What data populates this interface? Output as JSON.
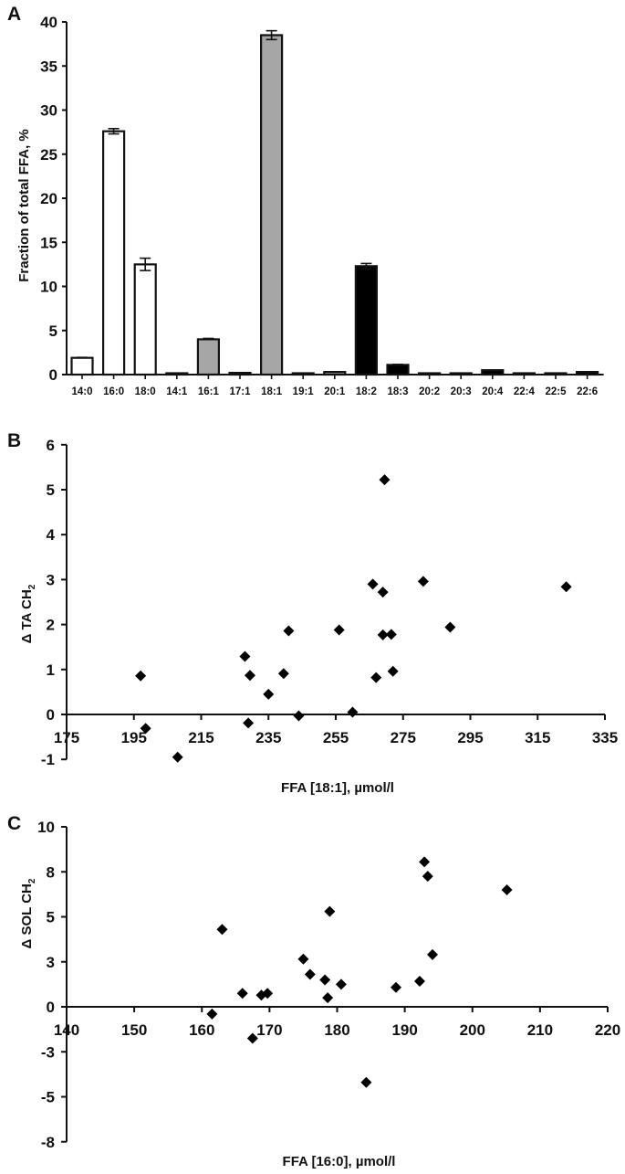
{
  "chart_data": [
    {
      "panel": "A",
      "type": "bar",
      "title": "",
      "xlabel": "",
      "ylabel": "Fraction of total FFA, %",
      "ylim": [
        0,
        40
      ],
      "yticks": [
        0,
        5,
        10,
        15,
        20,
        25,
        30,
        35,
        40
      ],
      "grid": false,
      "categories": [
        "14:0",
        "16:0",
        "18:0",
        "14:1",
        "16:1",
        "17:1",
        "18:1",
        "19:1",
        "20:1",
        "18:2",
        "18:3",
        "20:2",
        "20:3",
        "20:4",
        "22:4",
        "22:5",
        "22:6"
      ],
      "values": [
        1.9,
        27.6,
        12.5,
        0.15,
        4.0,
        0.2,
        38.5,
        0.05,
        0.3,
        12.3,
        1.1,
        0.1,
        0.15,
        0.5,
        0.05,
        0.1,
        0.3
      ],
      "errors": [
        0.05,
        0.3,
        0.7,
        0.02,
        0.1,
        0.02,
        0.5,
        0.01,
        0.03,
        0.3,
        0.05,
        0.01,
        0.02,
        0.03,
        0.01,
        0.01,
        0.03
      ],
      "groups": [
        "saturated",
        "saturated",
        "saturated",
        "monounsaturated",
        "monounsaturated",
        "monounsaturated",
        "monounsaturated",
        "monounsaturated",
        "monounsaturated",
        "polyunsaturated",
        "polyunsaturated",
        "polyunsaturated",
        "polyunsaturated",
        "polyunsaturated",
        "polyunsaturated",
        "polyunsaturated",
        "polyunsaturated"
      ],
      "group_colors": {
        "saturated": "#ffffff",
        "monounsaturated": "#a6a6a6",
        "polyunsaturated": "#000000"
      }
    },
    {
      "panel": "B",
      "type": "scatter",
      "title": "",
      "xlabel": "FFA [18:1], µmol/l",
      "ylabel": "Δ TA CH2",
      "xlim": [
        175,
        335
      ],
      "ylim": [
        -1,
        6
      ],
      "xticks": [
        175,
        195,
        215,
        235,
        255,
        275,
        295,
        315,
        335
      ],
      "yticks": [
        -1,
        0,
        1,
        2,
        3,
        4,
        5,
        6
      ],
      "grid": false,
      "points": [
        {
          "x": 197,
          "y": 0.86
        },
        {
          "x": 198.5,
          "y": -0.31
        },
        {
          "x": 208,
          "y": -0.95
        },
        {
          "x": 228,
          "y": 1.29
        },
        {
          "x": 229,
          "y": -0.19
        },
        {
          "x": 229.5,
          "y": 0.87
        },
        {
          "x": 235,
          "y": 0.45
        },
        {
          "x": 239.5,
          "y": 0.91
        },
        {
          "x": 241,
          "y": 1.86
        },
        {
          "x": 244,
          "y": -0.03
        },
        {
          "x": 256,
          "y": 1.88
        },
        {
          "x": 260,
          "y": 0.05
        },
        {
          "x": 266,
          "y": 2.9
        },
        {
          "x": 267,
          "y": 0.82
        },
        {
          "x": 269,
          "y": 2.72
        },
        {
          "x": 269.5,
          "y": 5.22
        },
        {
          "x": 269,
          "y": 1.77
        },
        {
          "x": 271.5,
          "y": 1.78
        },
        {
          "x": 272,
          "y": 0.96
        },
        {
          "x": 281,
          "y": 2.96
        },
        {
          "x": 289,
          "y": 1.94
        },
        {
          "x": 323.5,
          "y": 2.84
        }
      ]
    },
    {
      "panel": "C",
      "type": "scatter",
      "title": "",
      "xlabel": "FFA [16:0], µmol/l",
      "ylabel": "Δ SOL CH2",
      "xlim": [
        140,
        220
      ],
      "ylim": [
        -7.5,
        10
      ],
      "xticks": [
        140,
        150,
        160,
        170,
        180,
        190,
        200,
        210,
        220
      ],
      "ytick_labels": [
        "10",
        "8",
        "5",
        "3",
        "0",
        "-3",
        "-5",
        "-8"
      ],
      "ytick_values": [
        10,
        7.5,
        5,
        2.5,
        0,
        -2.5,
        -5,
        -7.5
      ],
      "grid": false,
      "points": [
        {
          "x": 161.5,
          "y": -0.4
        },
        {
          "x": 163,
          "y": 4.3
        },
        {
          "x": 166,
          "y": 0.75
        },
        {
          "x": 167.5,
          "y": -1.75
        },
        {
          "x": 168.8,
          "y": 0.65
        },
        {
          "x": 169.7,
          "y": 0.75
        },
        {
          "x": 175,
          "y": 2.65
        },
        {
          "x": 176,
          "y": 1.8
        },
        {
          "x": 178.2,
          "y": 1.5
        },
        {
          "x": 178.6,
          "y": 0.5
        },
        {
          "x": 178.9,
          "y": 5.3
        },
        {
          "x": 180.6,
          "y": 1.25
        },
        {
          "x": 184.3,
          "y": -4.2
        },
        {
          "x": 188.7,
          "y": 1.08
        },
        {
          "x": 192.2,
          "y": 1.42
        },
        {
          "x": 192.9,
          "y": 8.05
        },
        {
          "x": 193.4,
          "y": 7.25
        },
        {
          "x": 194.1,
          "y": 2.9
        },
        {
          "x": 205.1,
          "y": 6.5
        }
      ]
    }
  ],
  "panels": {
    "A": {
      "label": "A"
    },
    "B": {
      "label": "B"
    },
    "C": {
      "label": "C"
    }
  }
}
